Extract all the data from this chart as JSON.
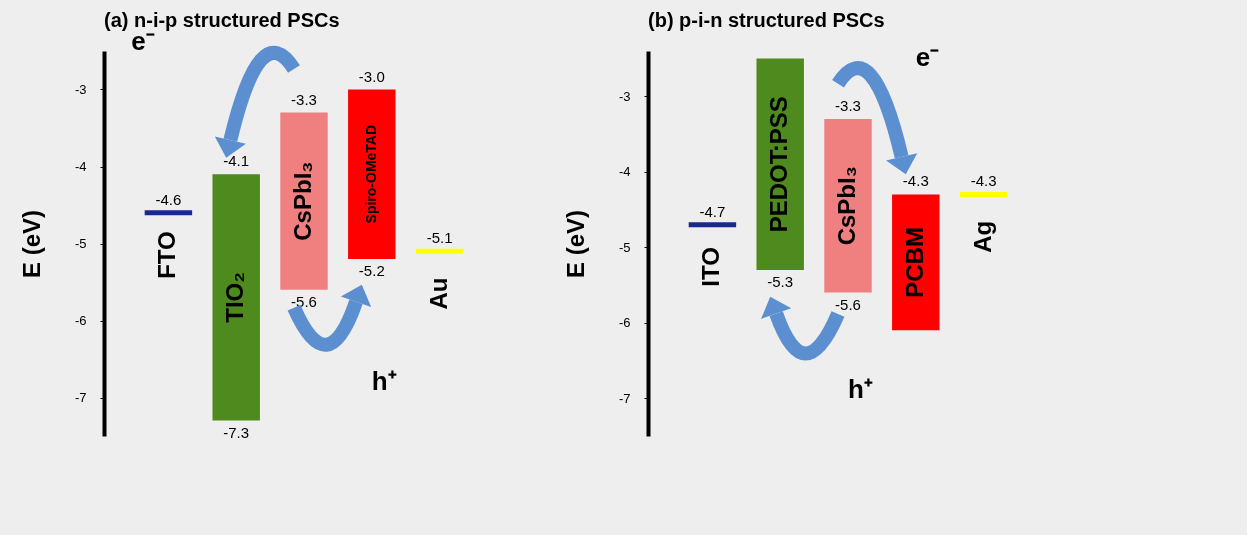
{
  "chart_data": [
    {
      "type": "bar",
      "title": "(a) n-i-p structured PSCs",
      "ylabel": "E (eV)",
      "categories": [
        "FTO",
        "TIO₂",
        "CsPbI₃",
        "Spiro-OMeTAD",
        "Au"
      ],
      "base": [
        -4.6,
        -7.3,
        -5.6,
        -5.2,
        -5.1
      ],
      "values": [
        0,
        3.2,
        2.3,
        2.2,
        0
      ],
      "colors": [
        "#1a2a8a",
        "#4f8a1f",
        "#f08080",
        "#ff0000",
        "#ffff00"
      ],
      "ylim": [
        -7.5,
        -2.5
      ],
      "yticks": [
        -3,
        -4,
        -5,
        -6,
        -7
      ],
      "grid": false,
      "tick_labels": "y",
      "annotations": [
        {
          "text": "-4.6",
          "x": "FTO",
          "y": -4.6
        },
        {
          "text": "-4.1",
          "x": "TIO₂",
          "y": -4.1
        },
        {
          "text": "-7.3",
          "x": "TIO₂",
          "y": -7.3
        },
        {
          "text": "-3.3",
          "x": "CsPbI₃",
          "y": -3.3
        },
        {
          "text": "-5.6",
          "x": "CsPbI₃",
          "y": -5.6
        },
        {
          "text": "-3.0",
          "x": "Spiro-OMeTAD",
          "y": -3.0
        },
        {
          "text": "-5.2",
          "x": "Spiro-OMeTAD",
          "y": -5.2
        },
        {
          "text": "-5.1",
          "x": "Au",
          "y": -5.1
        },
        "e⁻",
        "h⁺"
      ]
    },
    {
      "type": "bar",
      "title": "(b) p-i-n structured PSCs",
      "ylabel": "E (eV)",
      "categories": [
        "ITO",
        "PEDOT:PSS",
        "CsPbI₃",
        "PCBM",
        "Ag"
      ],
      "base": [
        -4.7,
        -5.3,
        -5.6,
        -6.1,
        -4.3
      ],
      "values": [
        0,
        2.8,
        2.3,
        1.8,
        0
      ],
      "colors": [
        "#1a2a8a",
        "#4f8a1f",
        "#f08080",
        "#ff0000",
        "#ffff00"
      ],
      "ylim": [
        -7.5,
        -2.4
      ],
      "yticks": [
        -3,
        -4,
        -5,
        -6,
        -7
      ],
      "grid": false,
      "tick_labels": "y",
      "annotations": [
        {
          "text": "-4.7",
          "x": "ITO",
          "y": -4.7
        },
        {
          "text": "-5.3",
          "x": "PEDOT:PSS",
          "y": -5.3
        },
        {
          "text": "-3.3",
          "x": "CsPbI₃",
          "y": -3.3
        },
        {
          "text": "-5.6",
          "x": "CsPbI₃",
          "y": -5.6
        },
        {
          "text": "-4.3",
          "x": "PCBM",
          "y": -4.3
        },
        {
          "text": "-4.3",
          "x": "Ag",
          "y": -4.3
        },
        "e⁻",
        "h⁺"
      ]
    }
  ]
}
